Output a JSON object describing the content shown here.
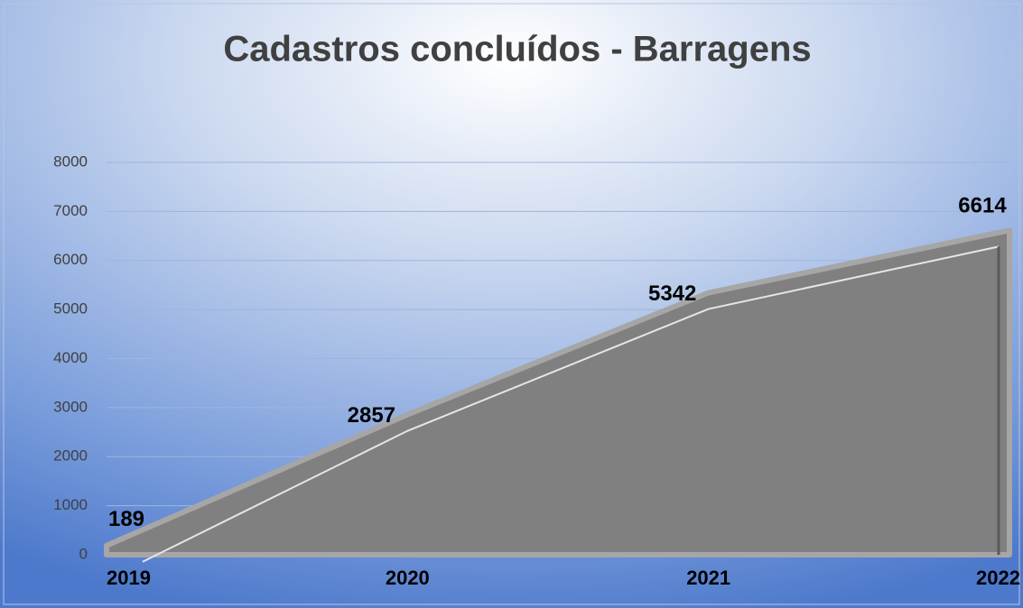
{
  "chart_data": {
    "type": "area",
    "title": "Cadastros concluídos - Barragens",
    "categories": [
      "2019",
      "2020",
      "2021",
      "2022"
    ],
    "values": [
      189,
      2857,
      5342,
      6614
    ],
    "color": "#808080",
    "ylim": [
      0,
      8000
    ],
    "yticks": [
      0,
      1000,
      2000,
      3000,
      4000,
      5000,
      6000,
      7000,
      8000
    ],
    "grid": true
  }
}
